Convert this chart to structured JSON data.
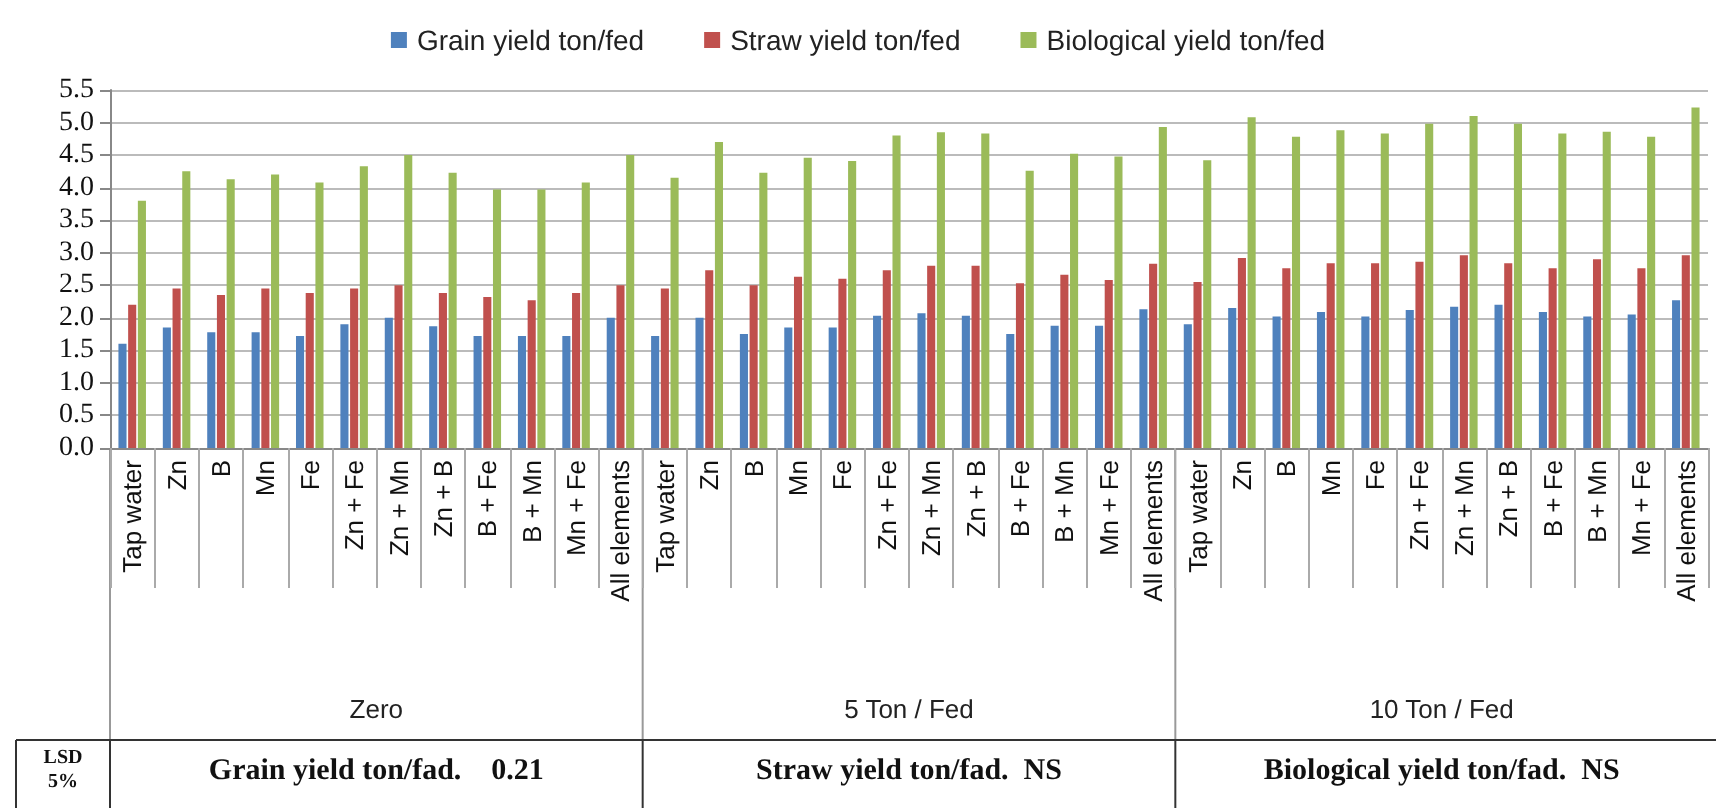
{
  "chart_data": {
    "type": "bar",
    "categories": [
      "Tap water",
      "Zn",
      "B",
      "Mn",
      "Fe",
      "Zn + Fe",
      "Zn + Mn",
      "Zn + B",
      "B + Fe",
      "B + Mn",
      "Mn + Fe",
      "All elements",
      "Tap water",
      "Zn",
      "B",
      "Mn",
      "Fe",
      "Zn + Fe",
      "Zn + Mn",
      "Zn + B",
      "B + Fe",
      "B + Mn",
      "Mn + Fe",
      "All elements",
      "Tap water",
      "Zn",
      "B",
      "Mn",
      "Fe",
      "Zn + Fe",
      "Zn + Mn",
      "Zn + B",
      "B + Fe",
      "B + Mn",
      "Mn + Fe",
      "All elements"
    ],
    "series": [
      {
        "name": "Grain yield ton/fed",
        "color": "#4f81bd",
        "values": [
          1.6,
          1.85,
          1.78,
          1.78,
          1.72,
          1.9,
          2.0,
          1.87,
          1.72,
          1.72,
          1.72,
          2.0,
          1.72,
          2.0,
          1.75,
          1.85,
          1.85,
          2.03,
          2.07,
          2.03,
          1.75,
          1.88,
          1.88,
          2.13,
          1.9,
          2.15,
          2.02,
          2.09,
          2.02,
          2.12,
          2.17,
          2.2,
          2.09,
          2.02,
          2.05,
          2.27
        ]
      },
      {
        "name": "Straw yield ton/fed",
        "color": "#c0504d",
        "values": [
          2.2,
          2.45,
          2.35,
          2.45,
          2.38,
          2.45,
          2.5,
          2.38,
          2.32,
          2.27,
          2.38,
          2.5,
          2.45,
          2.73,
          2.5,
          2.63,
          2.6,
          2.73,
          2.8,
          2.8,
          2.53,
          2.66,
          2.58,
          2.83,
          2.55,
          2.92,
          2.76,
          2.84,
          2.84,
          2.86,
          2.96,
          2.84,
          2.76,
          2.9,
          2.76,
          2.96
        ]
      },
      {
        "name": "Biological yield ton/fed",
        "color": "#9bbb59",
        "values": [
          3.8,
          4.25,
          4.13,
          4.2,
          4.08,
          4.33,
          4.5,
          4.23,
          3.97,
          3.97,
          4.08,
          4.5,
          4.15,
          4.7,
          4.23,
          4.46,
          4.41,
          4.8,
          4.85,
          4.83,
          4.26,
          4.52,
          4.48,
          4.93,
          4.42,
          5.08,
          4.78,
          4.88,
          4.83,
          4.98,
          5.1,
          4.98,
          4.83,
          4.86,
          4.78,
          5.23
        ]
      }
    ],
    "ylim": [
      0,
      5.5
    ],
    "yticks": [
      {
        "value": 0,
        "label": "0.0"
      },
      0.5,
      {
        "value": 1,
        "label": "1.0"
      },
      1.5,
      {
        "value": 2,
        "label": "2.0"
      },
      2.5,
      {
        "value": 3,
        "label": "3.0"
      },
      3.5,
      {
        "value": 4,
        "label": "4.0"
      },
      4.5,
      {
        "value": 5,
        "label": "5.0"
      },
      5.5
    ],
    "grid": "y",
    "legend": "top",
    "annotations": [
      "Zero",
      "5 Ton / Fed",
      "10 Ton / Fed",
      "LSD 5%",
      "Grain yield ton/fad.    0.21",
      "Straw yield ton/fad.  NS",
      "Biological yield ton/fad.  NS"
    ]
  }
}
